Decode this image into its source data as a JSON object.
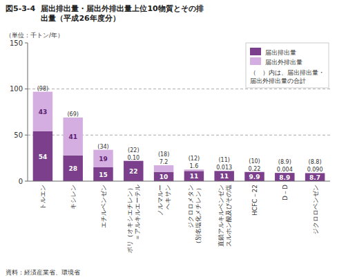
{
  "chart_data": {
    "type": "bar",
    "stacked": true,
    "title": "図5-3-4",
    "subtitle": "届出排出量・届出外排出量上位10物質とその排\n出量（平成26年度分）",
    "ylabel": "（単位：千トン/年）",
    "annotations": [
      "（　）内は、届出排出量・\n届出外排出量の合計",
      "資料：経済産業省、環境省"
    ],
    "categories": [
      "トルエン",
      "キシレン",
      "エチルベンゼン",
      "ポリ（オキシエチレン）\n＝アルキルエーテル",
      "ノルマルー\nヘキサン",
      "ジクロロメタン\n（別名塩化メチレン）",
      "直鎖アルキルベンゼン\nスルホン酸及びその塩",
      "HCFC－22",
      "D－D",
      "ジクロロベンゼン"
    ],
    "series": [
      {
        "name": "届出排出量",
        "color": "#7b3f8c",
        "values": [
          54,
          28,
          15,
          22,
          10,
          11,
          11,
          9.9,
          8.9,
          8.7
        ]
      },
      {
        "name": "届出外排出量",
        "color": "#d4aee0",
        "values": [
          43,
          41,
          19,
          0.1,
          7.2,
          1.6,
          0.013,
          0.22,
          0.004,
          0.09
        ],
        "value_labels": [
          "43",
          "41",
          "19",
          "0.10",
          "7.2",
          "1.6",
          "0.013",
          "0.22",
          "0.004",
          "0.090"
        ]
      }
    ],
    "total_labels": [
      "(98)",
      "(69)",
      "(34)",
      "(22)",
      "(18)",
      "(12)",
      "(11)",
      "(10)",
      "(8.9)",
      "(8.8)"
    ],
    "data_labels": true,
    "ylim": [
      0,
      150
    ],
    "yticks": [
      0,
      50,
      100,
      150
    ],
    "hlines": [
      50,
      100
    ],
    "legend": "upper right"
  }
}
